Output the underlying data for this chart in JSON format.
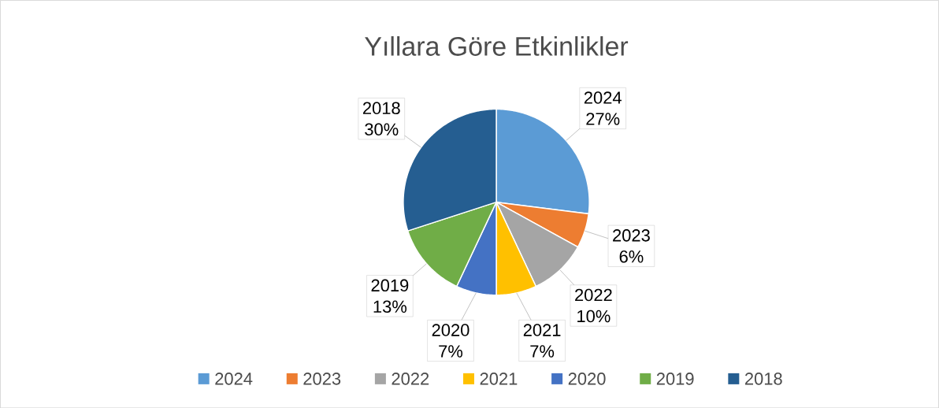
{
  "chart_data": {
    "type": "pie",
    "title": "Yıllara Göre Etkinlikler",
    "categories": [
      "2024",
      "2023",
      "2022",
      "2021",
      "2020",
      "2019",
      "2018"
    ],
    "values": [
      27,
      6,
      10,
      7,
      7,
      13,
      30
    ],
    "value_labels": [
      "27%",
      "6%",
      "10%",
      "7%",
      "7%",
      "13%",
      "30%"
    ],
    "colors": [
      "#5b9bd5",
      "#ed7d31",
      "#a5a5a5",
      "#ffc000",
      "#4472c4",
      "#70ad47",
      "#255e91"
    ],
    "legend": "bottom"
  }
}
